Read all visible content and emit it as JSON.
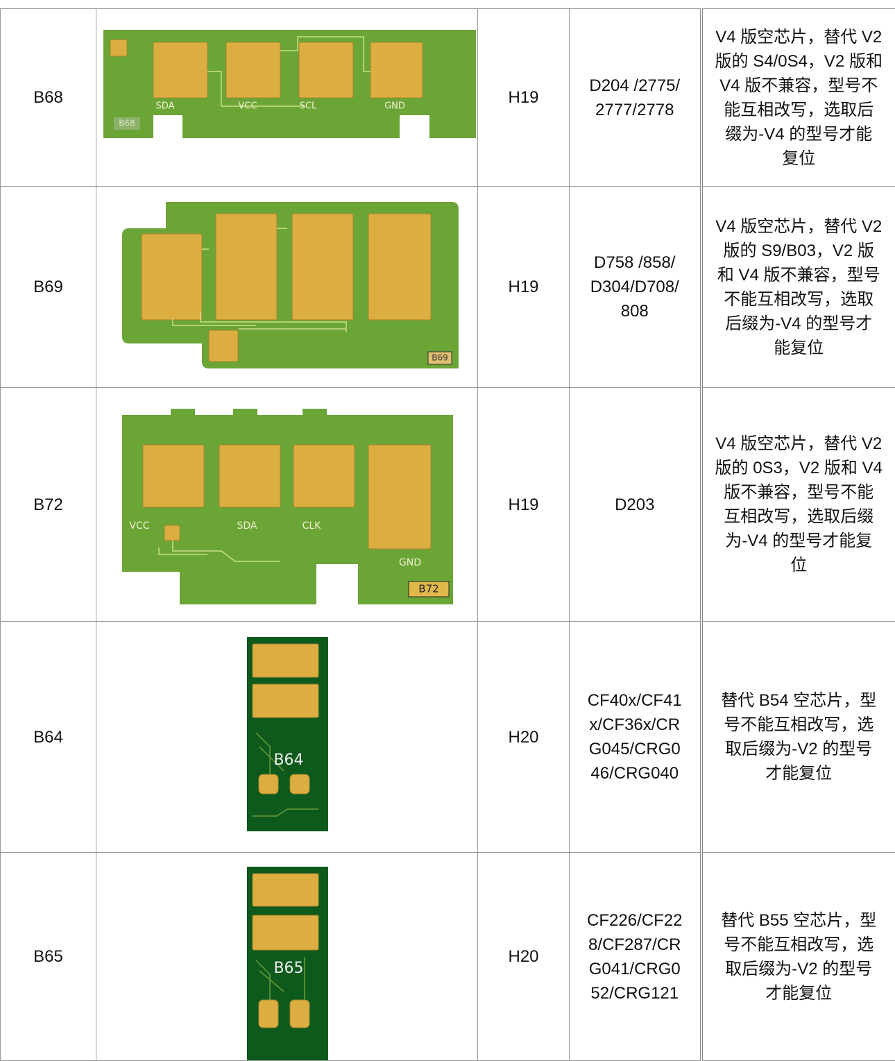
{
  "table": {
    "rows": [
      {
        "model": "B68",
        "image_labels": [
          "SDA",
          "VCC",
          "SCL",
          "GND",
          "B68"
        ],
        "chip": "H19",
        "printers": [
          "D204 /2775/",
          "2777/2778"
        ],
        "notes": [
          "V4 版空芯片，替代 V2",
          "版的 S4/0S4，V2 版和",
          "V4 版不兼容，型号不",
          "能互相改写，选取后",
          "缀为-V4 的型号才能",
          "复位"
        ]
      },
      {
        "model": "B69",
        "image_labels": [
          "B69"
        ],
        "chip": "H19",
        "printers": [
          "D758 /858/",
          "D304/D708/",
          "808"
        ],
        "notes": [
          "V4 版空芯片，替代 V2",
          "版的 S9/B03，V2 版",
          "和 V4 版不兼容，型号",
          "不能互相改写，选取",
          "后缀为-V4 的型号才",
          "能复位"
        ]
      },
      {
        "model": "B72",
        "image_labels": [
          "VCC",
          "SDA",
          "CLK",
          "GND",
          "B72"
        ],
        "chip": "H19",
        "printers": [
          "D203"
        ],
        "notes": [
          "V4 版空芯片，替代 V2",
          "版的 0S3，V2 版和 V4",
          "版不兼容，型号不能",
          "互相改写，选取后缀",
          "为-V4 的型号才能复",
          "位"
        ]
      },
      {
        "model": "B64",
        "image_labels": [
          "B64"
        ],
        "chip": "H20",
        "printers": [
          "CF40x/CF41",
          "x/CF36x/CR",
          "G045/CRG0",
          "46/CRG040"
        ],
        "notes": [
          "替代 B54 空芯片，型",
          "号不能互相改写，选",
          "取后缀为-V2 的型号",
          "才能复位"
        ]
      },
      {
        "model": "B65",
        "image_labels": [
          "B65"
        ],
        "chip": "H20",
        "printers": [
          "CF226/CF22",
          "8/CF287/CR",
          "G041/CRG0",
          "52/CRG121"
        ],
        "notes": [
          "替代 B55 空芯片，型",
          "号不能互相改写，选",
          "取后缀为-V2 的型号",
          "才能复位"
        ]
      }
    ]
  }
}
